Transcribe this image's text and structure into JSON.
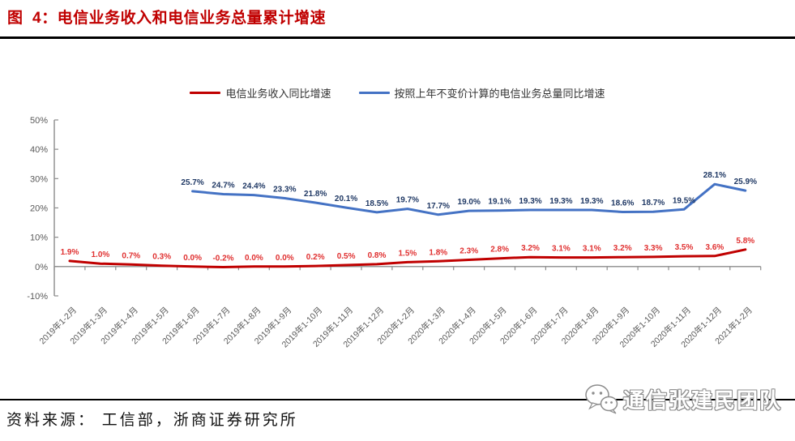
{
  "figure": {
    "title": "图  4：电信业务收入和电信业务总量累计增速"
  },
  "legend": {
    "items": [
      {
        "label": "电信业务收入同比增速",
        "color": "#C00000"
      },
      {
        "label": "按照上年不变价计算的电信业务总量同比增速",
        "color": "#4472C4"
      }
    ]
  },
  "footer": {
    "source": "资料来源： 工信部，浙商证券研究所"
  },
  "watermark": {
    "icon": "wechat-icon",
    "text": "通信张建民团队"
  },
  "chart_data": {
    "type": "line",
    "title": "",
    "xlabel": "",
    "ylabel": "",
    "ylim": [
      -10,
      50
    ],
    "ytick_labels": [
      "50%",
      "40%",
      "30%",
      "20%",
      "10%",
      "0%",
      "-10%"
    ],
    "grid": false,
    "legend_position": "top",
    "data_labels": true,
    "categories": [
      "2019年1-2月",
      "2019年1-3月",
      "2019年1-4月",
      "2019年1-5月",
      "2019年1-6月",
      "2019年1-7月",
      "2019年1-8月",
      "2019年1-9月",
      "2019年1-10月",
      "2019年1-11月",
      "2019年1-12月",
      "2020年1-2月",
      "2020年1-3月",
      "2020年1-4月",
      "2020年1-5月",
      "2020年1-6月",
      "2020年1-7月",
      "2020年1-8月",
      "2020年1-9月",
      "2020年1-10月",
      "2020年1-11月",
      "2020年1-12月",
      "2021年1-2月"
    ],
    "series": [
      {
        "name": "电信业务收入同比增速",
        "color": "#C00000",
        "label_color": "#E03030",
        "start_index": 0,
        "values": [
          1.9,
          1.0,
          0.7,
          0.3,
          0.0,
          -0.2,
          0.0,
          0.0,
          0.2,
          0.5,
          0.8,
          1.5,
          1.8,
          2.3,
          2.8,
          3.2,
          3.1,
          3.1,
          3.2,
          3.3,
          3.5,
          3.6,
          5.8
        ]
      },
      {
        "name": "按照上年不变价计算的电信业务总量同比增速",
        "color": "#4472C4",
        "label_color": "#1F3864",
        "start_index": 4,
        "values": [
          25.7,
          24.7,
          24.4,
          23.3,
          21.8,
          20.1,
          18.5,
          19.7,
          17.7,
          19.0,
          19.1,
          19.3,
          19.3,
          19.3,
          18.6,
          18.7,
          19.5,
          28.1,
          25.9
        ]
      }
    ],
    "axis_color": "#8c8c8c"
  }
}
